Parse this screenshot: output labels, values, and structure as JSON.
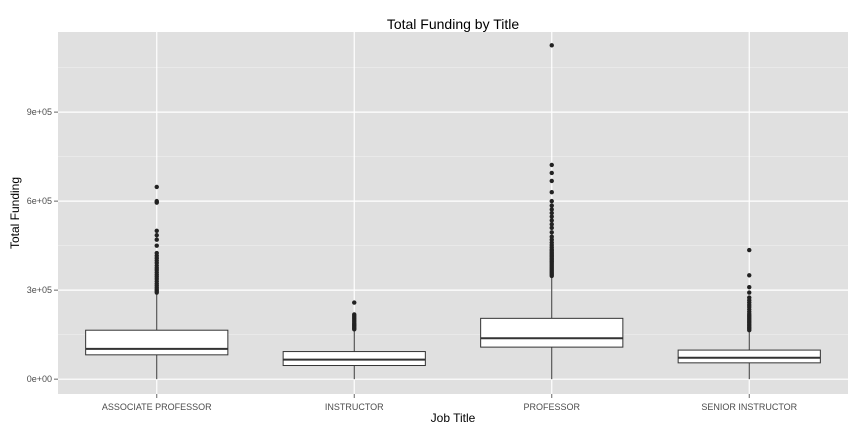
{
  "chart_data": {
    "type": "box",
    "title": "Total Funding by Title",
    "xlabel": "Job Title",
    "ylabel": "Total Funding",
    "ylim": [
      -50000,
      1170000
    ],
    "yticks": [
      {
        "value": 0,
        "label": "0e+00"
      },
      {
        "value": 300000,
        "label": "3e+05"
      },
      {
        "value": 600000,
        "label": "6e+05"
      },
      {
        "value": 900000,
        "label": "9e+05"
      }
    ],
    "categories": [
      "ASSOCIATE PROFESSOR",
      "INSTRUCTOR",
      "PROFESSOR",
      "SENIOR INSTRUCTOR"
    ],
    "boxes": [
      {
        "category": "ASSOCIATE PROFESSOR",
        "whisker_low": 0,
        "q1": 82000,
        "median": 102000,
        "q3": 165000,
        "whisker_high": 290000,
        "outliers": [
          292000,
          297000,
          302000,
          308000,
          315000,
          322000,
          330000,
          338000,
          345000,
          352000,
          360000,
          368000,
          375000,
          383000,
          392000,
          400000,
          408000,
          416000,
          425000,
          450000,
          470000,
          485000,
          500000,
          595000,
          600000,
          648000
        ]
      },
      {
        "category": "INSTRUCTOR",
        "whisker_low": 0,
        "q1": 46000,
        "median": 66000,
        "q3": 93000,
        "whisker_high": 165000,
        "outliers": [
          168000,
          172000,
          176000,
          180000,
          184000,
          188000,
          193000,
          198000,
          203000,
          208000,
          213000,
          218000,
          258000
        ]
      },
      {
        "category": "PROFESSOR",
        "whisker_low": 0,
        "q1": 108000,
        "median": 138000,
        "q3": 205000,
        "whisker_high": 345000,
        "outliers": [
          348000,
          353000,
          358000,
          363000,
          368000,
          373000,
          378000,
          383000,
          388000,
          393000,
          398000,
          403000,
          408000,
          413000,
          418000,
          423000,
          428000,
          433000,
          438000,
          445000,
          452000,
          460000,
          470000,
          480000,
          495000,
          510000,
          522000,
          535000,
          548000,
          560000,
          572000,
          585000,
          600000,
          630000,
          668000,
          695000,
          722000,
          1125000
        ]
      },
      {
        "category": "SENIOR INSTRUCTOR",
        "whisker_low": 0,
        "q1": 55000,
        "median": 72000,
        "q3": 98000,
        "whisker_high": 162000,
        "outliers": [
          165000,
          170000,
          175000,
          180000,
          185000,
          190000,
          195000,
          200000,
          205000,
          210000,
          215000,
          220000,
          227000,
          235000,
          243000,
          250000,
          258000,
          266000,
          275000,
          292000,
          310000,
          350000,
          435000
        ]
      }
    ],
    "colors": {
      "panel_bg": "#e0e0e0",
      "grid_major": "#ffffff",
      "grid_minor": "#ececec",
      "box_fill": "#ffffff",
      "box_stroke": "#333333",
      "outlier": "#222222"
    },
    "grid": true,
    "legend": "none"
  }
}
